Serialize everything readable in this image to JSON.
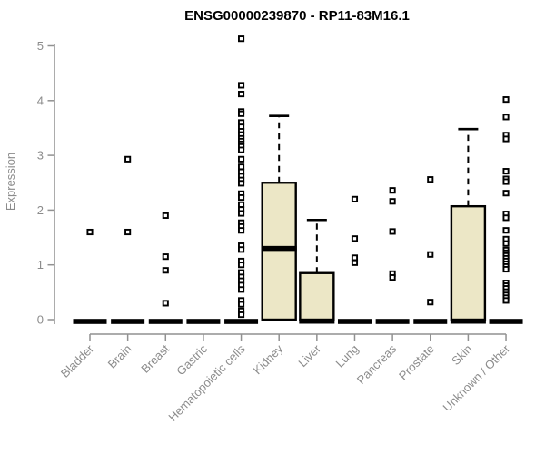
{
  "chart_data": {
    "type": "boxplot",
    "title": "ENSG00000239870 - RP11-83M16.1",
    "xlabel": "",
    "ylabel": "Expression",
    "ylim": [
      0,
      5
    ],
    "yticks": [
      "0",
      "1",
      "2",
      "3",
      "4",
      "5"
    ],
    "grid": false,
    "legend": "none",
    "marker": "open-square",
    "categories": [
      "Bladder",
      "Brain",
      "Breast",
      "Gastric",
      "Hematopoietic cells",
      "Kidney",
      "Liver",
      "Lung",
      "Pancreas",
      "Prostate",
      "Skin",
      "Unknown / Other"
    ],
    "series": [
      {
        "category": "Bladder",
        "q1": 0,
        "median": 0,
        "q3": 0,
        "whisker_low": 0,
        "whisker_high": 0,
        "outliers": [
          1.6
        ]
      },
      {
        "category": "Brain",
        "q1": 0,
        "median": 0,
        "q3": 0,
        "whisker_low": 0,
        "whisker_high": 0,
        "outliers": [
          2.93,
          1.6
        ]
      },
      {
        "category": "Breast",
        "q1": 0,
        "median": 0,
        "q3": 0,
        "whisker_low": 0,
        "whisker_high": 0,
        "outliers": [
          1.9,
          1.15,
          0.9,
          0.3
        ]
      },
      {
        "category": "Gastric",
        "q1": 0,
        "median": 0,
        "q3": 0,
        "whisker_low": 0,
        "whisker_high": 0,
        "outliers": []
      },
      {
        "category": "Hematopoietic cells",
        "q1": 0,
        "median": 0,
        "q3": 0,
        "whisker_low": 0,
        "whisker_high": 0,
        "outliers": [
          5.13,
          4.28,
          4.12,
          3.8,
          3.76,
          3.6,
          3.52,
          3.44,
          3.38,
          3.31,
          3.26,
          3.21,
          3.16,
          3.1,
          2.93,
          2.79,
          2.7,
          2.62,
          2.55,
          2.49,
          2.3,
          2.23,
          2.1,
          2.01,
          1.94,
          1.77,
          1.7,
          1.63,
          1.35,
          1.28,
          1.07,
          1.0,
          0.86,
          0.78,
          0.71,
          0.63,
          0.55,
          0.35,
          0.28,
          0.16,
          0.09
        ]
      },
      {
        "category": "Kidney",
        "q1": 0,
        "median": 1.3,
        "q3": 2.5,
        "whisker_low": 0,
        "whisker_high": 3.72,
        "outliers": []
      },
      {
        "category": "Liver",
        "q1": 0,
        "median": 0.03,
        "q3": 0.85,
        "whisker_low": 0,
        "whisker_high": 1.82,
        "outliers": []
      },
      {
        "category": "Lung",
        "q1": 0,
        "median": 0,
        "q3": 0,
        "whisker_low": 0,
        "whisker_high": 0,
        "outliers": [
          2.2,
          1.48,
          1.13,
          1.04
        ]
      },
      {
        "category": "Pancreas",
        "q1": 0,
        "median": 0,
        "q3": 0,
        "whisker_low": 0,
        "whisker_high": 0,
        "outliers": [
          2.36,
          2.16,
          1.61,
          0.84,
          0.77
        ]
      },
      {
        "category": "Prostate",
        "q1": 0,
        "median": 0,
        "q3": 0,
        "whisker_low": 0,
        "whisker_high": 0,
        "outliers": [
          2.56,
          1.19,
          0.32
        ]
      },
      {
        "category": "Skin",
        "q1": 0,
        "median": 0.03,
        "q3": 2.07,
        "whisker_low": 0,
        "whisker_high": 3.48,
        "outliers": []
      },
      {
        "category": "Unknown / Other",
        "q1": 0,
        "median": 0,
        "q3": 0,
        "whisker_low": 0,
        "whisker_high": 0,
        "outliers": [
          4.02,
          3.7,
          3.37,
          3.3,
          2.71,
          2.57,
          2.52,
          2.31,
          1.93,
          1.86,
          1.63,
          1.47,
          1.39,
          1.27,
          1.22,
          1.17,
          1.12,
          1.07,
          1.02,
          0.97,
          0.92,
          0.67,
          0.62,
          0.57,
          0.51,
          0.45,
          0.4,
          0.35
        ]
      }
    ],
    "colors": {
      "background": "#ffffff",
      "box_fill": "#ece7c6",
      "box_stroke": "#000000",
      "median": "#000000",
      "whisker": "#000000",
      "outlier": "#000000",
      "axis": "#919191",
      "tick_label": "#8c8c8c",
      "title": "#000000"
    }
  }
}
